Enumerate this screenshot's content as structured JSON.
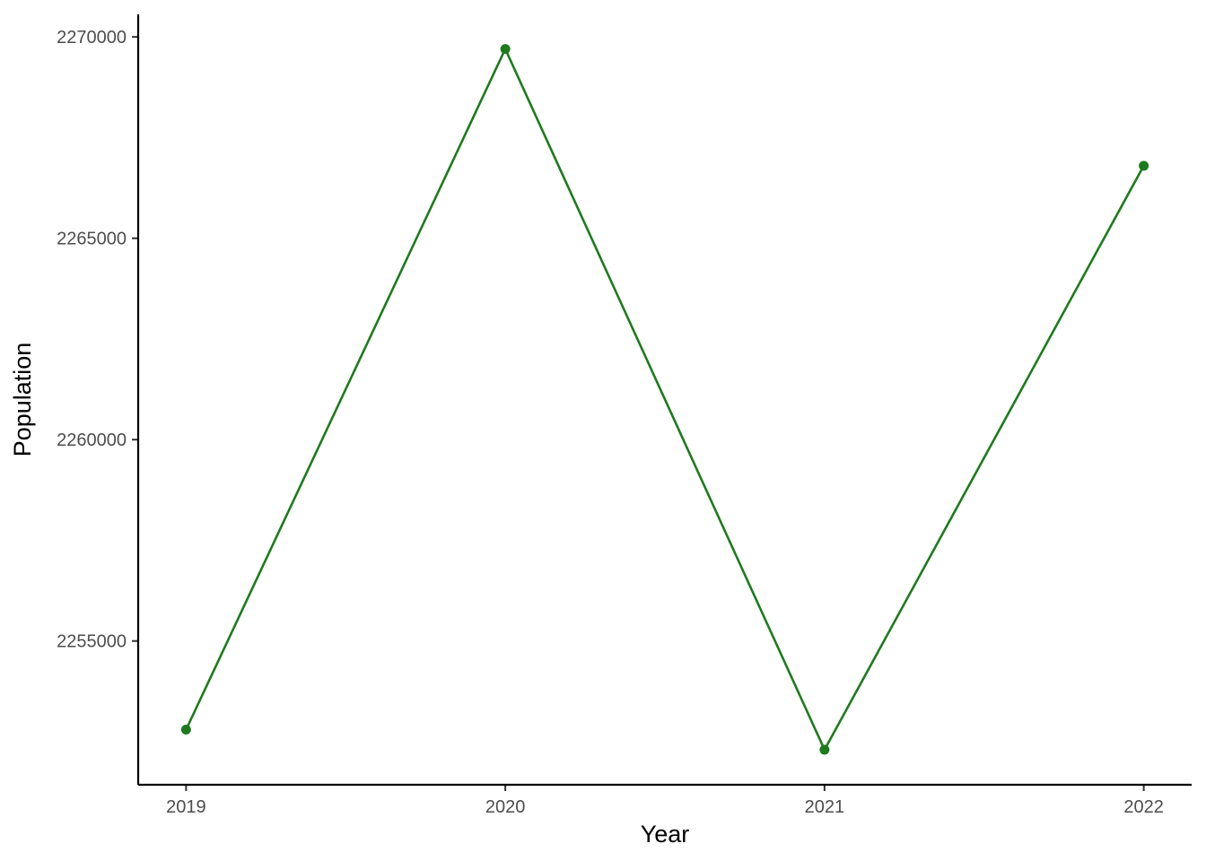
{
  "chart_data": {
    "type": "line",
    "title": "",
    "xlabel": "Year",
    "ylabel": "Population",
    "x": [
      2019,
      2020,
      2021,
      2022
    ],
    "series": [
      {
        "values": [
          2252800,
          2269700,
          2252300,
          2266800
        ],
        "color": "#1f7a1f"
      }
    ],
    "x_ticks": [
      "2019",
      "2020",
      "2021",
      "2022"
    ],
    "y_ticks": [
      {
        "value": 2255000,
        "label": "2255000"
      },
      {
        "value": 2260000,
        "label": "2260000"
      },
      {
        "value": 2265000,
        "label": "2265000"
      },
      {
        "value": 2270000,
        "label": "2270000"
      }
    ],
    "xlim": [
      2018.85,
      2022.15
    ],
    "ylim": [
      2251430,
      2270560
    ],
    "grid": false,
    "legend": "none"
  }
}
